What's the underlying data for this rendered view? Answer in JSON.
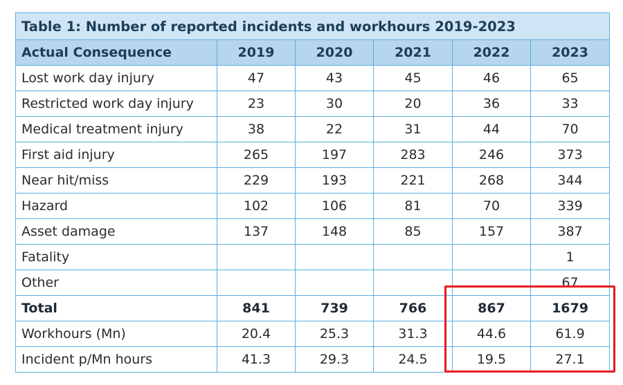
{
  "table": {
    "title": "Table 1: Number of reported incidents and workhours 2019-2023",
    "label_header": "Actual Consequence",
    "years": [
      "2019",
      "2020",
      "2021",
      "2022",
      "2023"
    ],
    "rows": [
      {
        "label": "Lost work day injury",
        "values": [
          "47",
          "43",
          "45",
          "46",
          "65"
        ]
      },
      {
        "label": "Restricted work day injury",
        "values": [
          "23",
          "30",
          "20",
          "36",
          "33"
        ]
      },
      {
        "label": "Medical treatment injury",
        "values": [
          "38",
          "22",
          "31",
          "44",
          "70"
        ]
      },
      {
        "label": "First aid injury",
        "values": [
          "265",
          "197",
          "283",
          "246",
          "373"
        ]
      },
      {
        "label": "Near hit/miss",
        "values": [
          "229",
          "193",
          "221",
          "268",
          "344"
        ]
      },
      {
        "label": "Hazard",
        "values": [
          "102",
          "106",
          "81",
          "70",
          "339"
        ]
      },
      {
        "label": "Asset damage",
        "values": [
          "137",
          "148",
          "85",
          "157",
          "387"
        ]
      },
      {
        "label": "Fatality",
        "values": [
          "",
          "",
          "",
          "",
          "1"
        ]
      },
      {
        "label": "Other",
        "values": [
          "",
          "",
          "",
          "",
          "67"
        ]
      },
      {
        "label": "Total",
        "values": [
          "841",
          "739",
          "766",
          "867",
          "1679"
        ],
        "bold": true
      },
      {
        "label": "Workhours (Mn)",
        "values": [
          "20.4",
          "25.3",
          "31.3",
          "44.6",
          "61.9"
        ]
      },
      {
        "label": "Incident p/Mn hours",
        "values": [
          "41.3",
          "29.3",
          "24.5",
          "19.5",
          "27.1"
        ]
      }
    ]
  },
  "colors": {
    "border": "#5aaedd",
    "title_bg": "#cfe5f5",
    "header_bg": "#b6d6ee",
    "highlight": "#e51c23"
  }
}
